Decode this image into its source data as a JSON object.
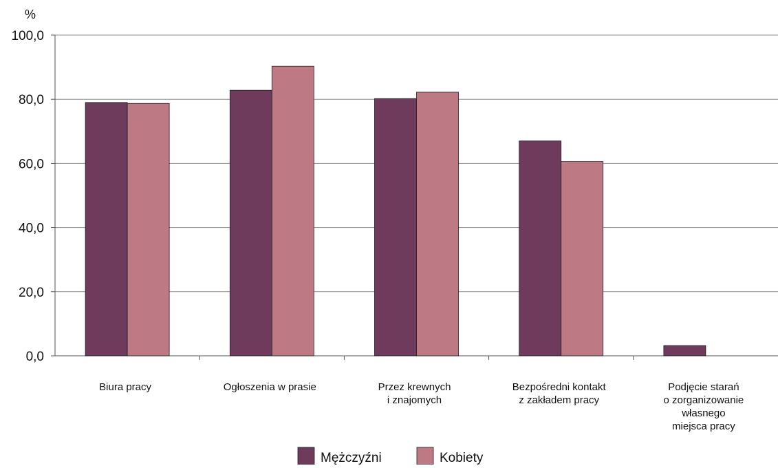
{
  "chart_data": {
    "type": "bar",
    "ylabel": "%",
    "ylim": [
      0,
      100
    ],
    "yticks": [
      "0,0",
      "20,0",
      "40,0",
      "60,0",
      "80,0",
      "100,0"
    ],
    "grid": true,
    "legend_position": "bottom",
    "categories": [
      [
        "Biura  pracy"
      ],
      [
        "Ogłoszenia w prasie"
      ],
      [
        "Przez krewnych",
        "i znajomych"
      ],
      [
        "Bezpośredni kontakt",
        "z zakładem pracy"
      ],
      [
        "Podjęcie starań",
        "o zorganizowanie",
        "własnego",
        "miejsca pracy"
      ]
    ],
    "series": [
      {
        "name": "Mężczyźni",
        "color": "#6f3b5c",
        "values": [
          79.0,
          82.8,
          80.2,
          67.0,
          3.2
        ]
      },
      {
        "name": "Kobiety",
        "color": "#bd7a85",
        "values": [
          78.7,
          90.3,
          82.2,
          60.6,
          0
        ]
      }
    ]
  }
}
